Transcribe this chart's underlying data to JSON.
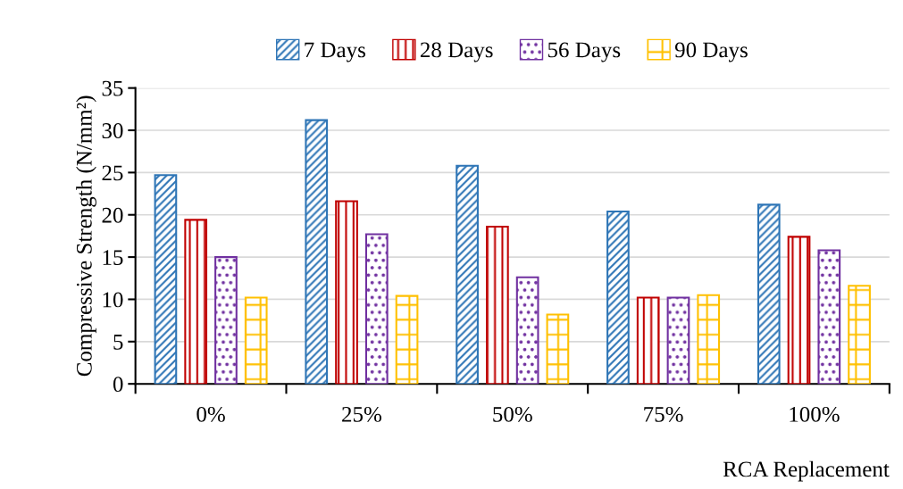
{
  "chart_data": {
    "type": "bar",
    "xlabel": "RCA Replacement",
    "ylabel": "Compressive Strength (N/mm²)",
    "categories": [
      "0%",
      "25%",
      "50%",
      "75%",
      "100%"
    ],
    "series": [
      {
        "name": "7 Days",
        "color": "#2e75b6",
        "values": [
          24.7,
          31.2,
          25.8,
          20.4,
          21.2
        ]
      },
      {
        "name": "28 Days",
        "color": "#c00000",
        "values": [
          19.4,
          21.6,
          18.6,
          10.2,
          17.4
        ]
      },
      {
        "name": "56 Days",
        "color": "#7030a0",
        "values": [
          15.0,
          17.7,
          12.6,
          10.2,
          15.8
        ]
      },
      {
        "name": "90 Days",
        "color": "#ffc000",
        "values": [
          10.2,
          10.4,
          8.2,
          10.5,
          11.6
        ]
      }
    ],
    "ylim": [
      0,
      35
    ],
    "yticks": [
      0,
      5,
      10,
      15,
      20,
      25,
      30,
      35
    ],
    "grid": "y",
    "legend": "top"
  }
}
